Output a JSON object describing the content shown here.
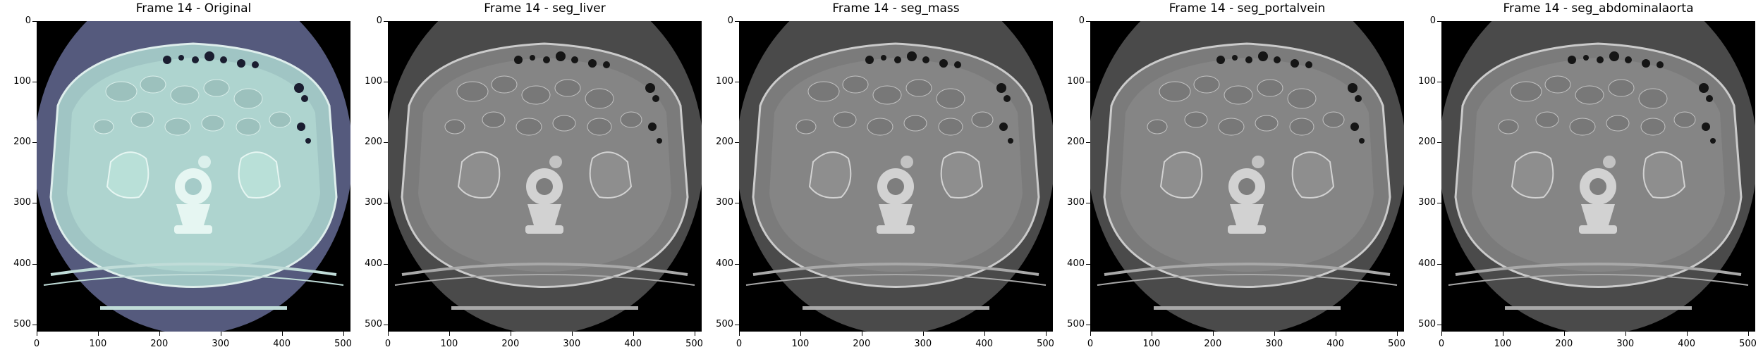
{
  "figure": {
    "panels": [
      {
        "title": "Frame 14 - Original",
        "colormap": "bone"
      },
      {
        "title": "Frame 14 - seg_liver",
        "colormap": "gray"
      },
      {
        "title": "Frame 14 - seg_mass",
        "colormap": "gray"
      },
      {
        "title": "Frame 14 - seg_portalvein",
        "colormap": "gray"
      },
      {
        "title": "Frame 14 - seg_abdominalaorta",
        "colormap": "gray"
      }
    ],
    "x_ticks": [
      "0",
      "100",
      "200",
      "300",
      "400",
      "500"
    ],
    "y_ticks": [
      "0",
      "100",
      "200",
      "300",
      "400",
      "500"
    ]
  }
}
